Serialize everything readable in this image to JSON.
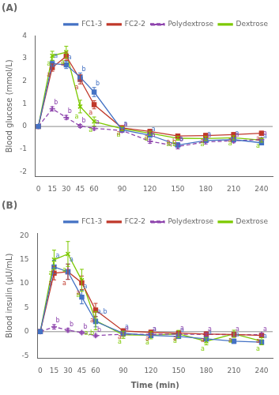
{
  "chart_data": [
    {
      "type": "line",
      "title": "(A)",
      "ylabel": "Blood glucose (mmol/L)",
      "x": [
        0,
        15,
        30,
        45,
        60,
        90,
        120,
        150,
        180,
        210,
        240
      ],
      "xlim": [
        -3,
        252
      ],
      "xticks": [
        0,
        15,
        30,
        45,
        60,
        90,
        120,
        150,
        180,
        210,
        240
      ],
      "ylim": [
        -2.2,
        4.0
      ],
      "yticks": [
        -2,
        -1,
        0,
        1,
        2,
        3,
        4
      ],
      "grid": false,
      "legend": "upper right",
      "series": [
        {
          "name": "FC1-3",
          "color": "#4472c4",
          "marker": "square",
          "line_style": "solid",
          "values": [
            0.0,
            2.78,
            2.72,
            2.18,
            1.52,
            -0.15,
            -0.38,
            -0.82,
            -0.62,
            -0.58,
            -0.72
          ],
          "errors": [
            0.0,
            0.14,
            0.16,
            0.18,
            0.2,
            0.1,
            0.09,
            0.11,
            0.09,
            0.09,
            0.09
          ],
          "letters": [
            null,
            "a",
            "a",
            "b",
            "b",
            "a",
            "a",
            "a",
            "a",
            "a",
            "a"
          ]
        },
        {
          "name": "FC2-2",
          "color": "#c0392b",
          "marker": "square",
          "line_style": "solid",
          "values": [
            0.0,
            2.6,
            3.1,
            2.08,
            0.96,
            -0.06,
            -0.22,
            -0.42,
            -0.4,
            -0.36,
            -0.3
          ],
          "errors": [
            0.0,
            0.16,
            0.18,
            0.2,
            0.18,
            0.09,
            0.09,
            0.09,
            0.09,
            0.09,
            0.09
          ],
          "letters": [
            null,
            "a",
            "a",
            "a",
            "a",
            "a",
            "a",
            "a,b",
            "a",
            "a",
            "a"
          ]
        },
        {
          "name": "Polydextrose",
          "color": "#8e44ad",
          "marker": "plus",
          "line_style": "dashed",
          "values": [
            0.0,
            0.78,
            0.4,
            0.02,
            -0.08,
            -0.18,
            -0.65,
            -0.88,
            -0.68,
            -0.63,
            -0.58
          ],
          "errors": [
            0.0,
            0.09,
            0.09,
            0.07,
            0.07,
            0.07,
            0.09,
            0.11,
            0.09,
            0.09,
            0.09
          ],
          "letters": [
            null,
            "b",
            "b",
            "b",
            "a",
            "a",
            "a",
            "b",
            "a",
            "a",
            "a"
          ]
        },
        {
          "name": "Dextrose",
          "color": "#7dc900",
          "marker": "x",
          "line_style": "solid",
          "values": [
            0.0,
            3.12,
            3.28,
            0.88,
            0.22,
            -0.1,
            -0.3,
            -0.52,
            -0.53,
            -0.5,
            -0.6
          ],
          "errors": [
            0.0,
            0.2,
            0.26,
            0.28,
            0.2,
            0.09,
            0.09,
            0.09,
            0.09,
            0.09,
            0.09
          ],
          "letters": [
            null,
            "a",
            "a",
            "a",
            "a",
            "a",
            "a",
            "a,b",
            "a",
            "a",
            "a"
          ]
        }
      ]
    },
    {
      "type": "line",
      "title": "(B)",
      "ylabel": "Blood insulin (μU/mL)",
      "xlabel": "Time (min)",
      "x": [
        0,
        15,
        30,
        45,
        60,
        90,
        120,
        150,
        180,
        210,
        240
      ],
      "xlim": [
        -3,
        252
      ],
      "xticks": [
        0,
        15,
        30,
        45,
        60,
        90,
        120,
        150,
        180,
        210,
        240
      ],
      "ylim": [
        -5.5,
        20.5
      ],
      "yticks": [
        -5,
        0,
        5,
        10,
        15,
        20
      ],
      "grid": false,
      "legend": "upper right",
      "series": [
        {
          "name": "FC1-3",
          "color": "#4472c4",
          "marker": "square",
          "line_style": "solid",
          "values": [
            0.0,
            13.5,
            12.5,
            7.2,
            2.1,
            -0.35,
            -0.8,
            -1.0,
            -1.5,
            -2.0,
            -2.2
          ],
          "errors": [
            0.0,
            1.4,
            1.6,
            1.4,
            1.1,
            0.45,
            0.45,
            0.45,
            0.45,
            0.45,
            0.45
          ],
          "letters": [
            null,
            "a",
            "a",
            "a",
            "a,b",
            "a",
            "a",
            "a",
            "a",
            "a",
            "a"
          ]
        },
        {
          "name": "FC2-2",
          "color": "#c0392b",
          "marker": "square",
          "line_style": "solid",
          "values": [
            0.0,
            12.2,
            12.5,
            10.2,
            4.5,
            0.15,
            -0.15,
            -0.3,
            -0.5,
            -0.6,
            -0.8
          ],
          "errors": [
            0.0,
            1.4,
            1.6,
            1.4,
            1.4,
            0.45,
            0.45,
            0.45,
            0.45,
            0.45,
            0.45
          ],
          "letters": [
            null,
            "a",
            "a",
            "a",
            "a",
            "a",
            "a",
            "a",
            "a",
            "a",
            "a"
          ]
        },
        {
          "name": "Polydextrose",
          "color": "#8e44ad",
          "marker": "plus",
          "line_style": "dashed",
          "values": [
            0.0,
            1.0,
            0.32,
            -0.2,
            -0.82,
            -0.52,
            -0.58,
            -0.52,
            -0.58,
            -0.62,
            -0.62
          ],
          "errors": [
            0.0,
            0.45,
            0.36,
            0.28,
            0.28,
            0.28,
            0.28,
            0.28,
            0.28,
            0.28,
            0.28
          ],
          "letters": [
            null,
            "b",
            "b",
            "b",
            "b",
            "a",
            "a",
            "a",
            "a",
            "a",
            "a"
          ]
        },
        {
          "name": "Dextrose",
          "color": "#7dc900",
          "marker": "x",
          "line_style": "solid",
          "values": [
            0.0,
            15.0,
            16.2,
            10.7,
            2.3,
            -0.65,
            -0.75,
            -0.48,
            -2.0,
            -0.45,
            -2.0
          ],
          "errors": [
            0.0,
            2.0,
            2.6,
            2.3,
            1.9,
            0.75,
            0.75,
            0.75,
            0.75,
            0.75,
            0.75
          ],
          "letters": [
            null,
            "a",
            "a",
            "a",
            "a,b",
            "a",
            "a",
            "a",
            "a",
            "a",
            "a"
          ]
        }
      ]
    }
  ]
}
